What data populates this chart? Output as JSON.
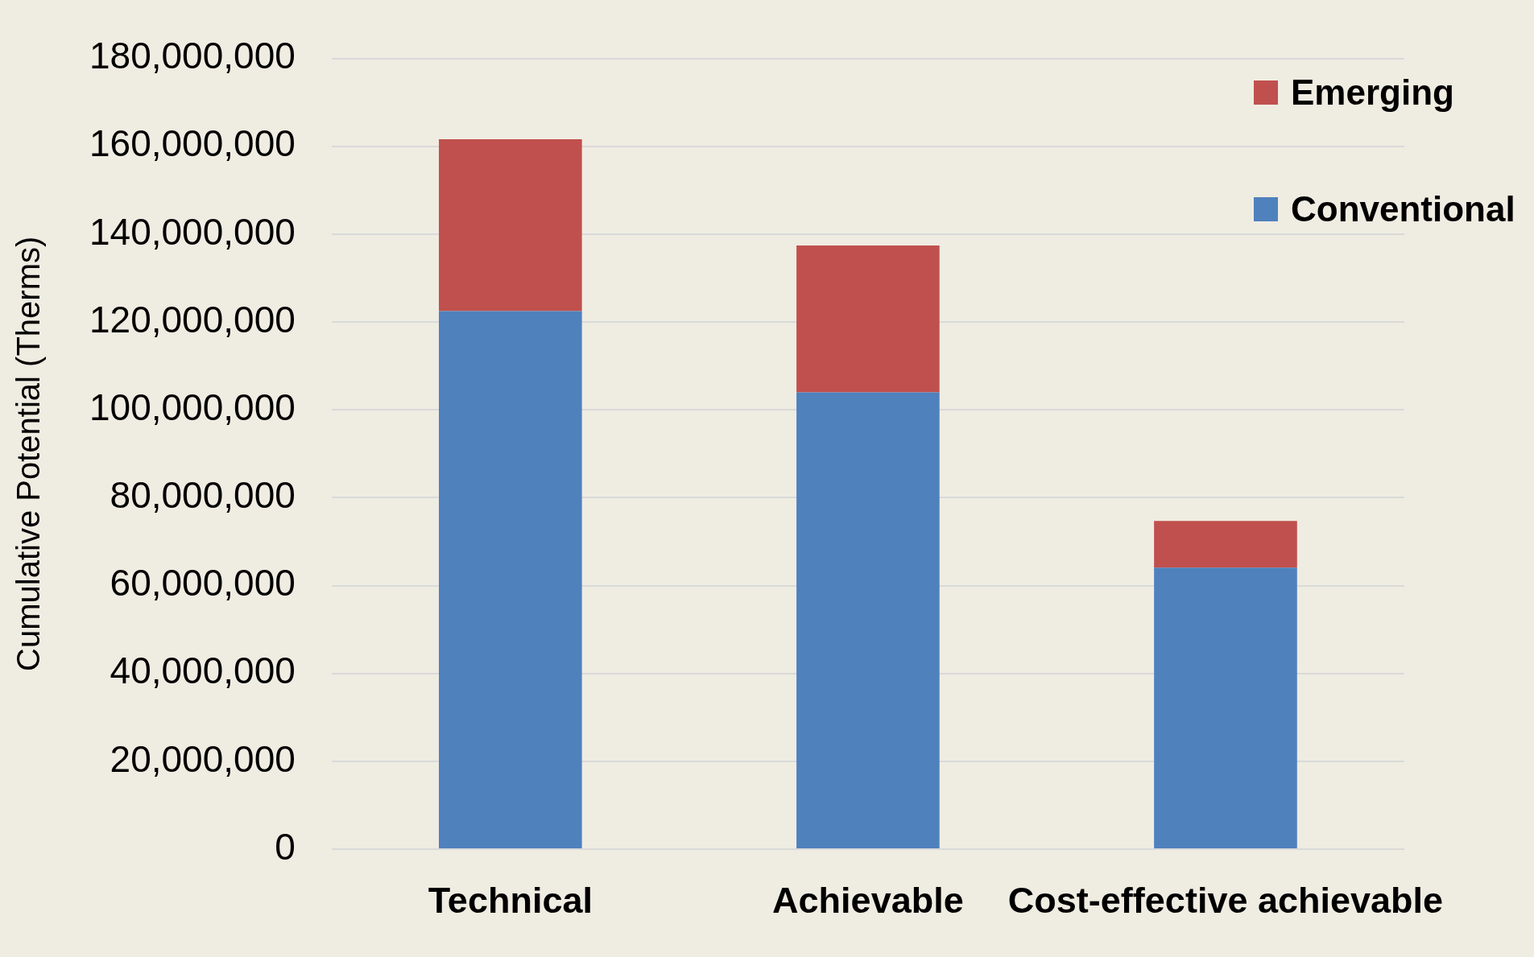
{
  "chart_data": {
    "type": "bar",
    "stacked": true,
    "ylabel": "Cumulative Potential (Therms)",
    "categories": [
      "Technical",
      "Achievable",
      "Cost-effective achievable"
    ],
    "series": [
      {
        "name": "Conventional",
        "color": "#4f81bd",
        "values": [
          122500000,
          104000000,
          64100000
        ]
      },
      {
        "name": "Emerging",
        "color": "#c0504d",
        "values": [
          39100000,
          33400000,
          10600000
        ]
      }
    ],
    "ylim": [
      0,
      180000000
    ],
    "yticks": [
      0,
      {
        "value": 20000000,
        "label": "20,000,000"
      },
      {
        "value": 40000000,
        "label": "40,000,000"
      },
      {
        "value": 60000000,
        "label": "60,000,000"
      },
      {
        "value": 80000000,
        "label": "80,000,000"
      },
      {
        "value": 100000000,
        "label": "100,000,000"
      },
      {
        "value": 120000000,
        "label": "120,000,000"
      },
      {
        "value": 140000000,
        "label": "140,000,000"
      },
      {
        "value": 160000000,
        "label": "160,000,000"
      },
      {
        "value": 180000000,
        "label": "180,000,000"
      }
    ],
    "grid": "y",
    "legend": "top right"
  }
}
